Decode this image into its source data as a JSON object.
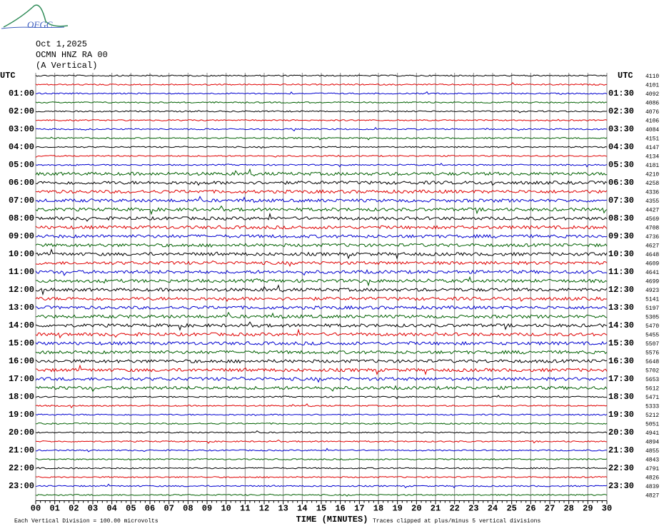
{
  "logo": "OFGC",
  "header": {
    "date": "Oct 1,2025",
    "station": "OCMN HNZ RA 00",
    "component": "(A Vertical)"
  },
  "left_axis": {
    "title": "UTC",
    "labels": [
      "01:00",
      "02:00",
      "03:00",
      "04:00",
      "05:00",
      "06:00",
      "07:00",
      "08:00",
      "09:00",
      "10:00",
      "11:00",
      "12:00",
      "13:00",
      "14:00",
      "15:00",
      "16:00",
      "17:00",
      "18:00",
      "19:00",
      "20:00",
      "21:00",
      "22:00",
      "23:00"
    ]
  },
  "right_axis": {
    "title": "UTC",
    "labels": [
      "01:30",
      "02:30",
      "03:30",
      "04:30",
      "05:30",
      "06:30",
      "07:30",
      "08:30",
      "09:30",
      "10:30",
      "11:30",
      "12:30",
      "13:30",
      "14:30",
      "15:30",
      "16:30",
      "17:30",
      "18:30",
      "19:30",
      "20:30",
      "21:30",
      "22:30",
      "23:30"
    ]
  },
  "trace_values": [
    4110,
    4101,
    4092,
    4086,
    4076,
    4106,
    4084,
    4151,
    4147,
    4134,
    4181,
    4210,
    4258,
    4336,
    4355,
    4427,
    4569,
    4708,
    4736,
    4627,
    4648,
    4609,
    4641,
    4699,
    4923,
    5141,
    5197,
    5305,
    5470,
    5455,
    5507,
    5576,
    5648,
    5702,
    5653,
    5612,
    5471,
    5333,
    5212,
    5051,
    4941,
    4894,
    4855,
    4843,
    4791,
    4826,
    4839,
    4827
  ],
  "trace_colors": [
    "#000000",
    "#e00000",
    "#0000d0",
    "#006000"
  ],
  "x_axis": {
    "title": "TIME (MINUTES)",
    "labels": [
      "00",
      "01",
      "02",
      "03",
      "04",
      "05",
      "06",
      "07",
      "08",
      "09",
      "10",
      "11",
      "12",
      "13",
      "14",
      "15",
      "16",
      "17",
      "18",
      "19",
      "20",
      "21",
      "22",
      "23",
      "24",
      "25",
      "26",
      "27",
      "28",
      "29",
      "30"
    ]
  },
  "footer": {
    "scale": "Each Vertical Division =  100.00 microvolts",
    "clip": "Traces clipped at plus/minus 5 vertical divisions"
  }
}
